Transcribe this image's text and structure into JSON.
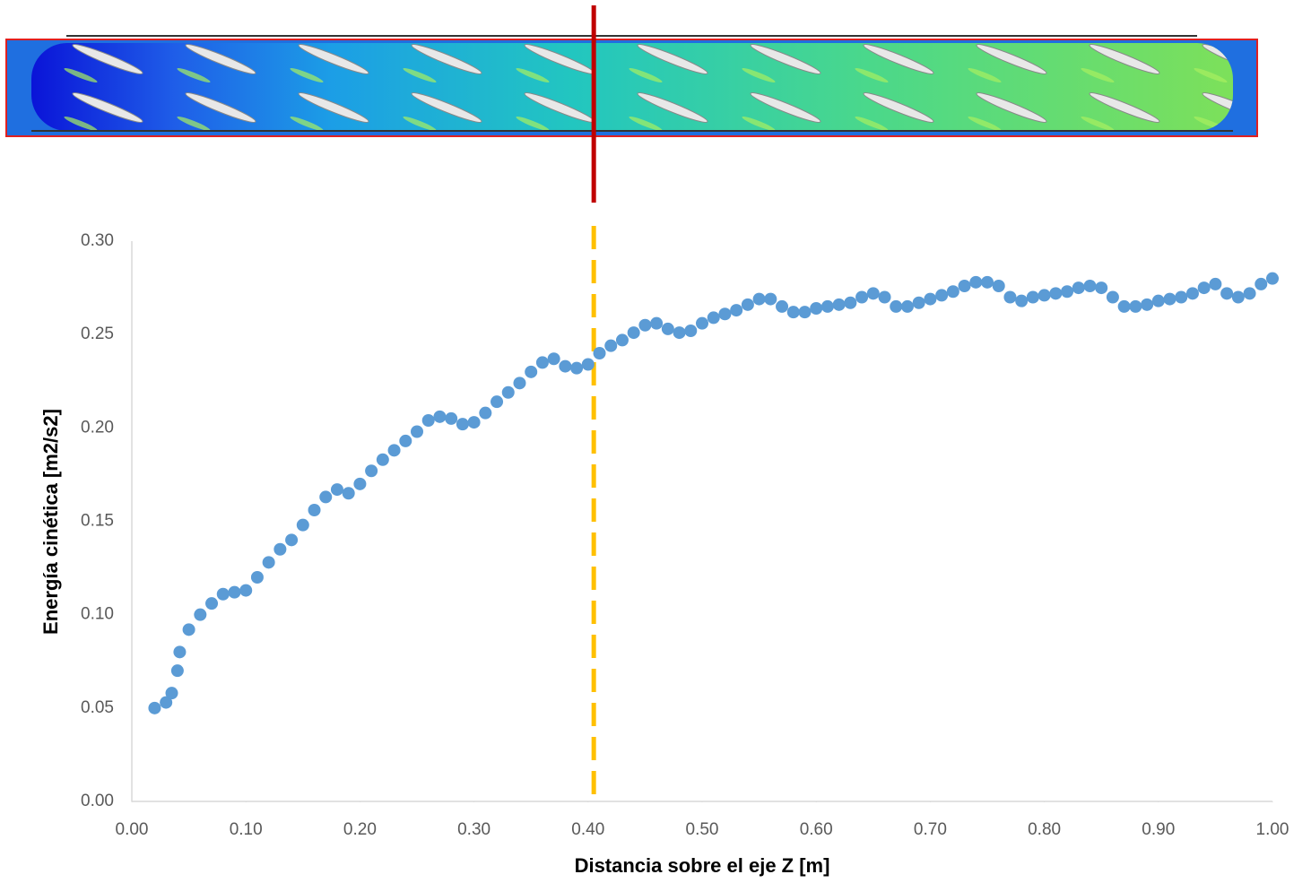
{
  "chart_data": {
    "type": "scatter",
    "x_label": "Distancia sobre el eje Z [m]",
    "y_label": "Energía cinética  [m2/s2]",
    "xlim": [
      0,
      1
    ],
    "ylim": [
      0,
      0.3
    ],
    "xticks": [
      {
        "value": 0,
        "label": "0.00"
      },
      {
        "value": 0.1,
        "label": "0.10"
      },
      {
        "value": 0.2,
        "label": "0.20"
      },
      {
        "value": 0.3,
        "label": "0.30"
      },
      {
        "value": 0.4,
        "label": "0.40"
      },
      {
        "value": 0.5,
        "label": "0.50"
      },
      {
        "value": 0.6,
        "label": "0.60"
      },
      {
        "value": 0.7,
        "label": "0.70"
      },
      {
        "value": 0.8,
        "label": "0.80"
      },
      {
        "value": 0.9,
        "label": "0.90"
      },
      {
        "value": 1,
        "label": "1.00"
      }
    ],
    "yticks": [
      {
        "value": 0,
        "label": "0.00"
      },
      {
        "value": 0.05,
        "label": "0.05"
      },
      {
        "value": 0.1,
        "label": "0.10"
      },
      {
        "value": 0.15,
        "label": "0.15"
      },
      {
        "value": 0.2,
        "label": "0.20"
      },
      {
        "value": 0.25,
        "label": "0.25"
      },
      {
        "value": 0.3,
        "label": "0.30"
      }
    ],
    "grid": false,
    "vline_x": 0.405,
    "vline_color": "#ffc000",
    "marker_color": "#c00000",
    "series": [
      {
        "color": "#5b9bd5",
        "x": [
          0.02,
          0.03,
          0.035,
          0.04,
          0.042,
          0.05,
          0.06,
          0.07,
          0.08,
          0.09,
          0.1,
          0.11,
          0.12,
          0.13,
          0.14,
          0.15,
          0.16,
          0.17,
          0.18,
          0.19,
          0.2,
          0.21,
          0.22,
          0.23,
          0.24,
          0.25,
          0.26,
          0.27,
          0.28,
          0.29,
          0.3,
          0.31,
          0.32,
          0.33,
          0.34,
          0.35,
          0.36,
          0.37,
          0.38,
          0.39,
          0.4,
          0.41,
          0.42,
          0.43,
          0.44,
          0.45,
          0.46,
          0.47,
          0.48,
          0.49,
          0.5,
          0.51,
          0.52,
          0.53,
          0.54,
          0.55,
          0.56,
          0.57,
          0.58,
          0.59,
          0.6,
          0.61,
          0.62,
          0.63,
          0.64,
          0.65,
          0.66,
          0.67,
          0.68,
          0.69,
          0.7,
          0.71,
          0.72,
          0.73,
          0.74,
          0.75,
          0.76,
          0.77,
          0.78,
          0.79,
          0.8,
          0.81,
          0.82,
          0.83,
          0.84,
          0.85,
          0.86,
          0.87,
          0.88,
          0.89,
          0.9,
          0.91,
          0.92,
          0.93,
          0.94,
          0.95,
          0.96,
          0.97,
          0.98,
          0.99,
          1.0
        ],
        "values": [
          0.05,
          0.053,
          0.058,
          0.07,
          0.08,
          0.092,
          0.1,
          0.106,
          0.111,
          0.112,
          0.113,
          0.12,
          0.128,
          0.135,
          0.14,
          0.148,
          0.156,
          0.163,
          0.167,
          0.165,
          0.17,
          0.177,
          0.183,
          0.188,
          0.193,
          0.198,
          0.204,
          0.206,
          0.205,
          0.202,
          0.203,
          0.208,
          0.214,
          0.219,
          0.224,
          0.23,
          0.235,
          0.237,
          0.233,
          0.232,
          0.234,
          0.24,
          0.244,
          0.247,
          0.251,
          0.255,
          0.256,
          0.253,
          0.251,
          0.252,
          0.256,
          0.259,
          0.261,
          0.263,
          0.266,
          0.269,
          0.269,
          0.265,
          0.262,
          0.262,
          0.264,
          0.265,
          0.266,
          0.267,
          0.27,
          0.272,
          0.27,
          0.265,
          0.265,
          0.267,
          0.269,
          0.271,
          0.273,
          0.276,
          0.278,
          0.278,
          0.276,
          0.27,
          0.268,
          0.27,
          0.271,
          0.272,
          0.273,
          0.275,
          0.276,
          0.275,
          0.27,
          0.265,
          0.265,
          0.266,
          0.268,
          0.269,
          0.27,
          0.272,
          0.275,
          0.277,
          0.272,
          0.27,
          0.272,
          0.277,
          0.28
        ]
      }
    ]
  }
}
